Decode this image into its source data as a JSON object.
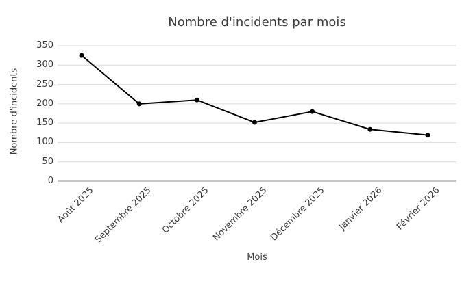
{
  "chart_data": {
    "type": "line",
    "title": "Nombre d'incidents par mois",
    "xlabel": "Mois",
    "ylabel": "Nombre d'incidents",
    "categories": [
      "Août 2025",
      "Septembre 2025",
      "Octobre 2025",
      "Novembre 2025",
      "Décembre 2025",
      "Janvier 2026",
      "Février 2026"
    ],
    "values": [
      325,
      200,
      210,
      152,
      180,
      134,
      119
    ],
    "ylim": [
      0,
      350
    ],
    "ytick_step": 50,
    "yticks": [
      0,
      50,
      100,
      150,
      200,
      250,
      300,
      350
    ],
    "grid": true,
    "legend": "none",
    "line_color": "#000000",
    "marker_color": "#000000",
    "gridline_color": "#dcdcdc",
    "axis_line_color": "#909090",
    "text_color": "#3d3d3d",
    "background_color": "#ffffff"
  }
}
